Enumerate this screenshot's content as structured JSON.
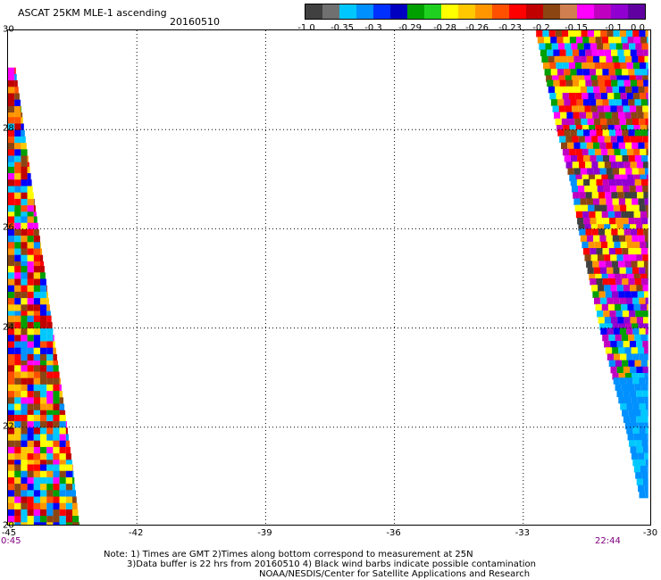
{
  "header": {
    "title": "ASCAT 25KM MLE-1 ascending",
    "date": "20160510"
  },
  "colorbar": {
    "colors": [
      "#404040",
      "#707070",
      "#00c8ff",
      "#0090ff",
      "#0030ff",
      "#0000c0",
      "#00a000",
      "#20d020",
      "#ffff00",
      "#ffc800",
      "#ff9600",
      "#ff5000",
      "#ff0000",
      "#c00000",
      "#8b4513",
      "#d08050",
      "#ff00ff",
      "#c000c0",
      "#9000d0",
      "#6000a0"
    ],
    "ticks": [
      "-1.0",
      "-0.35",
      "-0.3",
      "-0.29",
      "-0.28",
      "-0.26",
      "-0.23",
      "-0.2",
      "-0.15",
      "-0.1",
      "0.0"
    ]
  },
  "axes": {
    "lat_labels": [
      "30",
      "28",
      "26",
      "24",
      "22",
      "20"
    ],
    "lon_labels": [
      "-45",
      "-42",
      "-39",
      "-36",
      "-33",
      "-30"
    ],
    "lat_range": [
      20,
      30
    ],
    "lon_range": [
      -45,
      -30
    ],
    "grid": "dotted"
  },
  "times": {
    "left": "0:45",
    "right": "22:44"
  },
  "notes": {
    "line1": "Note: 1) Times are GMT 2)Times along bottom correspond to measurement at 25N",
    "line2": "3)Data buffer is 22 hrs from 20160510 4) Black wind barbs indicate possible contamination",
    "line3": "NOAA/NESDIS/Center for Satellite Applications and Research"
  },
  "swaths": [
    {
      "name": "west",
      "rows": [
        {
          "lat": 29.25,
          "lon_start": -45.0,
          "lon_end": -44.83
        },
        {
          "lat": 28.25,
          "lon_start": -45.0,
          "lon_end": -44.66
        },
        {
          "lat": 27.25,
          "lon_start": -45.0,
          "lon_end": -44.5
        },
        {
          "lat": 26.25,
          "lon_start": -45.0,
          "lon_end": -44.33
        },
        {
          "lat": 25.25,
          "lon_start": -45.0,
          "lon_end": -44.16
        },
        {
          "lat": 24.25,
          "lon_start": -45.0,
          "lon_end": -44.0
        },
        {
          "lat": 23.25,
          "lon_start": -45.0,
          "lon_end": -43.83
        },
        {
          "lat": 22.25,
          "lon_start": -45.0,
          "lon_end": -43.66
        },
        {
          "lat": 21.25,
          "lon_start": -45.0,
          "lon_end": -43.5
        },
        {
          "lat": 20.0,
          "lon_start": -45.0,
          "lon_end": -43.33
        }
      ]
    },
    {
      "name": "east",
      "rows": [
        {
          "lat": 30.0,
          "lon_start": -32.7,
          "lon_end": -30.1
        },
        {
          "lat": 29.0,
          "lon_start": -32.45,
          "lon_end": -30.1
        },
        {
          "lat": 28.0,
          "lon_start": -32.2,
          "lon_end": -30.1
        },
        {
          "lat": 27.0,
          "lon_start": -31.9,
          "lon_end": -30.1
        },
        {
          "lat": 26.0,
          "lon_start": -31.7,
          "lon_end": -30.1
        },
        {
          "lat": 25.0,
          "lon_start": -31.45,
          "lon_end": -30.1
        },
        {
          "lat": 24.0,
          "lon_start": -31.2,
          "lon_end": -30.1
        },
        {
          "lat": 23.0,
          "lon_start": -30.9,
          "lon_end": -30.1
        },
        {
          "lat": 22.0,
          "lon_start": -30.6,
          "lon_end": -30.1
        },
        {
          "lat": 20.7,
          "lon_start": -30.3,
          "lon_end": -30.1
        }
      ]
    }
  ]
}
